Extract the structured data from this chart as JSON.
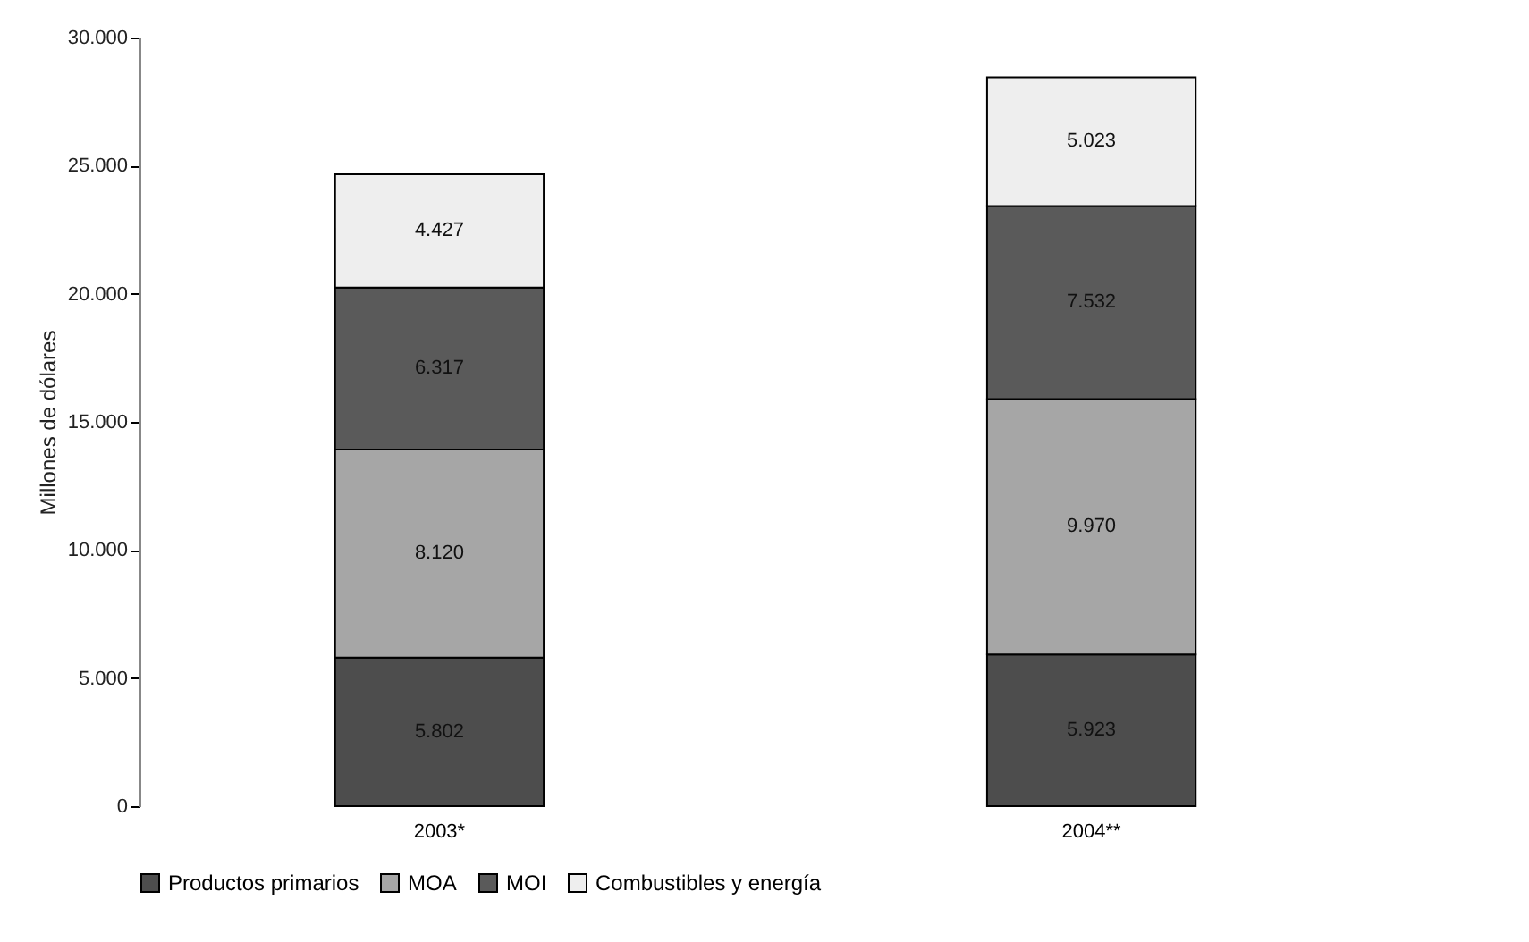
{
  "chart_data": {
    "type": "bar",
    "stacked": true,
    "ylabel": "Millones de dólares",
    "categories": [
      "2003*",
      "2004**"
    ],
    "series": [
      {
        "name": "Productos primarios",
        "color": "#4d4d4d",
        "values": [
          5802,
          5923
        ],
        "value_labels": [
          "5.802",
          "5.923"
        ]
      },
      {
        "name": "MOA",
        "color": "#a6a6a6",
        "values": [
          8120,
          9970
        ],
        "value_labels": [
          "8.120",
          "9.970"
        ]
      },
      {
        "name": "MOI",
        "color": "#5a5a5a",
        "values": [
          6317,
          7532
        ],
        "value_labels": [
          "6.317",
          "7.532"
        ]
      },
      {
        "name": "Combustibles y energía",
        "color": "#eeeeee",
        "values": [
          4427,
          5023
        ],
        "value_labels": [
          "4.427",
          "5.023"
        ]
      }
    ],
    "ylim": [
      0,
      30000
    ],
    "yticks": [
      0,
      {
        "value": 5000,
        "label": "5.000"
      },
      {
        "value": 10000,
        "label": "10.000"
      },
      {
        "value": 15000,
        "label": "15.000"
      },
      {
        "value": 20000,
        "label": "20.000"
      },
      {
        "value": 25000,
        "label": "25.000"
      },
      {
        "value": 30000,
        "label": "30.000"
      }
    ],
    "legend": "bottom"
  }
}
